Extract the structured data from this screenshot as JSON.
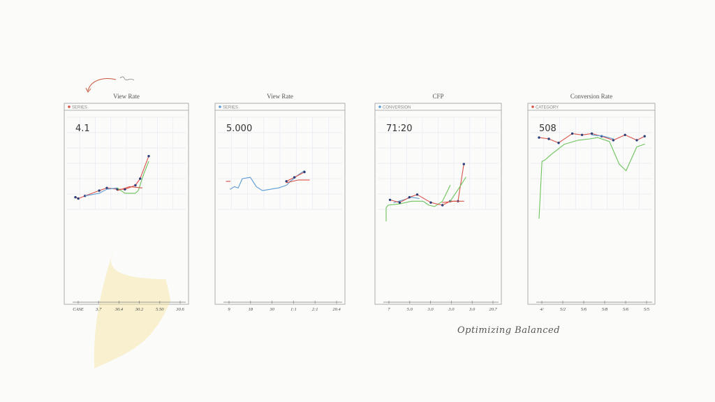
{
  "colors": {
    "red": "#d9534a",
    "blue": "#5b9bd5",
    "green": "#6cc35b",
    "navy": "#2b3f7a",
    "yellow": "#f3e39a"
  },
  "footer": {
    "signature": "Optimizing Balanced"
  },
  "chart_data": [
    {
      "type": "line",
      "title": "View Rate",
      "kpi": "4.1",
      "legend": "SERIES",
      "x_ticks": [
        "CASE",
        "3.7",
        "30.4",
        "30.2",
        "5.50",
        "30.6"
      ],
      "ylim": [
        0,
        10
      ],
      "area_fill": true,
      "series": [
        {
          "color_key": "red",
          "markers": true,
          "x": [
            0,
            3,
            10,
            25,
            33,
            44,
            52,
            63,
            68,
            77
          ],
          "y": [
            4.6,
            4.5,
            4.7,
            5.1,
            5.3,
            5.2,
            5.2,
            5.5,
            6.0,
            7.7
          ]
        },
        {
          "color_key": "blue",
          "markers": false,
          "x": [
            10,
            25,
            33,
            44
          ],
          "y": [
            4.7,
            4.9,
            5.2,
            5.3
          ]
        },
        {
          "color_key": "green",
          "markers": false,
          "x": [
            44,
            52,
            63,
            66,
            72,
            77
          ],
          "y": [
            5.3,
            4.9,
            4.9,
            5.1,
            6.4,
            7.3
          ]
        },
        {
          "color_key": "red",
          "markers": false,
          "x": [
            44,
            57,
            70
          ],
          "y": [
            5.1,
            5.4,
            5.3
          ]
        }
      ]
    },
    {
      "type": "line",
      "title": "View Rate",
      "kpi": "5.000",
      "legend": "SERIES",
      "x_ticks": [
        "9",
        "18",
        "30",
        "1:1",
        "2:1",
        "20.4"
      ],
      "ylim": [
        0,
        10
      ],
      "area_fill": false,
      "series": [
        {
          "color_key": "red",
          "markers": false,
          "x": [
            0,
            4
          ],
          "y": [
            5.8,
            5.8
          ]
        },
        {
          "color_key": "blue",
          "markers": false,
          "x": [
            4,
            8,
            12,
            16,
            24,
            30,
            36,
            44,
            52,
            60,
            64,
            72,
            78
          ],
          "y": [
            5.2,
            5.4,
            5.3,
            6.0,
            6.1,
            5.4,
            5.1,
            5.2,
            5.3,
            5.5,
            5.8,
            6.3,
            6.6
          ]
        },
        {
          "color_key": "red",
          "markers": true,
          "x": [
            60,
            68,
            78
          ],
          "y": [
            5.8,
            6.1,
            6.5
          ]
        },
        {
          "color_key": "red",
          "markers": false,
          "x": [
            60,
            72,
            83
          ],
          "y": [
            5.7,
            5.9,
            5.9
          ]
        }
      ]
    },
    {
      "type": "line",
      "title": "CFP",
      "kpi": "71:20",
      "legend": "CONVERSION",
      "x_ticks": [
        "7",
        "5.0",
        "3.0",
        "3.0",
        "3.0",
        "20.7"
      ],
      "ylim": [
        0,
        10
      ],
      "area_fill": false,
      "series": [
        {
          "color_key": "green",
          "markers": false,
          "x": [
            0,
            0,
            2,
            14,
            26,
            38,
            44,
            50,
            58,
            66
          ],
          "y": [
            2.8,
            3.8,
            4.0,
            4.1,
            4.3,
            4.3,
            4.0,
            3.9,
            4.3,
            5.5
          ]
        },
        {
          "color_key": "blue",
          "markers": false,
          "x": [
            8,
            18,
            26,
            34
          ],
          "y": [
            4.2,
            4.4,
            4.6,
            4.5
          ]
        },
        {
          "color_key": "red",
          "markers": true,
          "x": [
            4,
            14,
            24,
            32,
            46,
            58,
            66,
            74,
            80
          ],
          "y": [
            4.4,
            4.2,
            4.6,
            4.8,
            4.2,
            4.0,
            4.3,
            4.3,
            7.1
          ]
        },
        {
          "color_key": "red",
          "markers": false,
          "x": [
            58,
            70,
            80
          ],
          "y": [
            4.2,
            4.3,
            4.3
          ]
        },
        {
          "color_key": "green",
          "markers": false,
          "x": [
            66,
            76,
            82
          ],
          "y": [
            4.3,
            5.4,
            6.1
          ]
        }
      ]
    },
    {
      "type": "line",
      "title": "Conversion Rate",
      "kpi": "508",
      "legend": "CATEGORY",
      "x_ticks": [
        "4/",
        "5/2",
        "5/6",
        "5/8",
        "5/6",
        "5/5"
      ],
      "ylim": [
        0,
        10
      ],
      "area_fill": false,
      "series": [
        {
          "color_key": "green",
          "markers": false,
          "x": [
            0,
            3,
            6,
            12,
            26,
            40,
            52,
            60,
            72,
            82,
            89,
            100,
            108
          ],
          "y": [
            3.0,
            7.3,
            7.4,
            7.8,
            8.6,
            8.9,
            9.0,
            9.1,
            8.8,
            7.1,
            6.6,
            8.4,
            8.6
          ]
        },
        {
          "color_key": "red",
          "markers": true,
          "x": [
            0,
            10,
            20,
            34,
            44,
            54,
            64,
            76,
            88,
            100,
            108
          ],
          "y": [
            9.1,
            9.0,
            8.7,
            9.4,
            9.3,
            9.4,
            9.2,
            8.9,
            9.3,
            8.9,
            9.2
          ]
        },
        {
          "color_key": "blue",
          "markers": false,
          "x": [
            54,
            66,
            76
          ],
          "y": [
            9.3,
            9.2,
            9.0
          ]
        }
      ]
    }
  ]
}
